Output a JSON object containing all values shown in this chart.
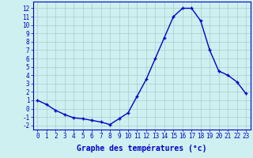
{
  "x": [
    0,
    1,
    2,
    3,
    4,
    5,
    6,
    7,
    8,
    9,
    10,
    11,
    12,
    13,
    14,
    15,
    16,
    17,
    18,
    19,
    20,
    21,
    22,
    23
  ],
  "y": [
    1,
    0.5,
    -0.2,
    -0.7,
    -1.1,
    -1.2,
    -1.4,
    -1.6,
    -1.9,
    -1.2,
    -0.5,
    1.5,
    3.5,
    6.0,
    8.5,
    11.0,
    12.0,
    12.0,
    10.5,
    7.0,
    4.5,
    4.0,
    3.2,
    1.8
  ],
  "line_color": "#0000cc",
  "marker_color": "#0000cc",
  "bg_color": "#cff0f0",
  "grid_color": "#aacccc",
  "axis_color": "#0000cc",
  "xlabel": "Graphe des températures (°c)",
  "xlabel_fontsize": 7,
  "ylabel_ticks": [
    -2,
    -1,
    0,
    1,
    2,
    3,
    4,
    5,
    6,
    7,
    8,
    9,
    10,
    11,
    12
  ],
  "xlim": [
    -0.5,
    23.5
  ],
  "ylim": [
    -2.5,
    12.8
  ],
  "xtick_fontsize": 5.5,
  "ytick_fontsize": 5.5,
  "marker_size": 3.5,
  "line_width": 1.0
}
